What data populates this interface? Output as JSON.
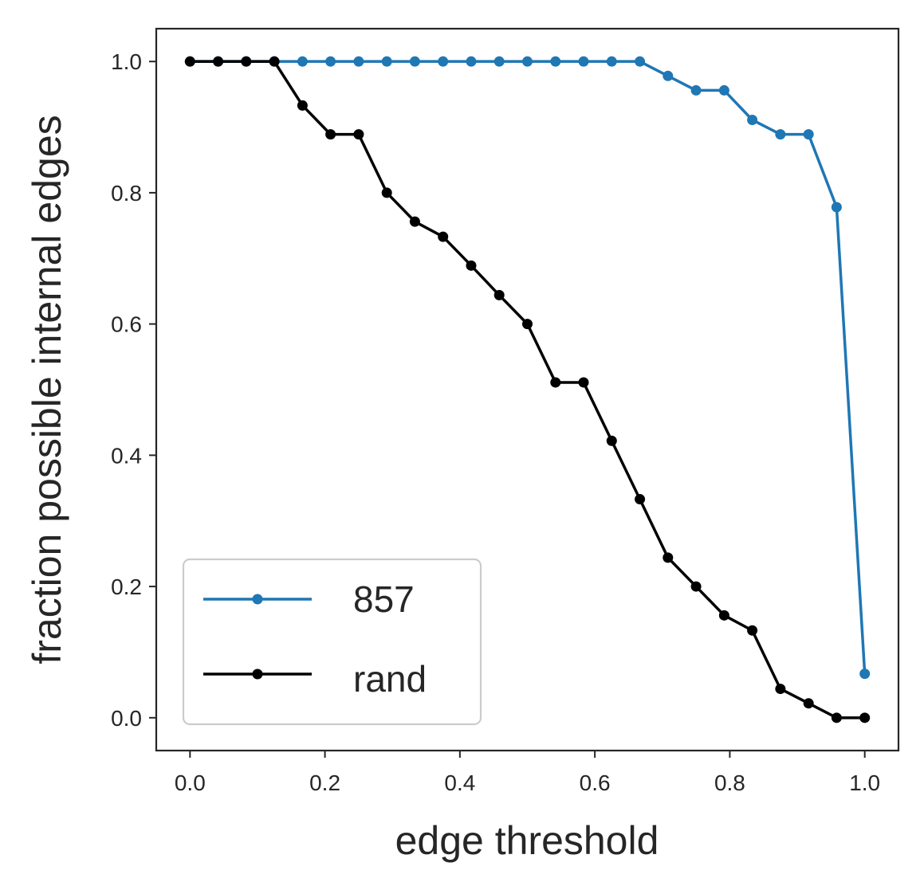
{
  "chart_data": {
    "type": "line",
    "xlabel": "edge threshold",
    "ylabel": "fraction possible internal edges",
    "xlim": [
      -0.05,
      1.05
    ],
    "ylim": [
      -0.05,
      1.05
    ],
    "xticks": [
      0.0,
      0.2,
      0.4,
      0.6,
      0.8,
      1.0
    ],
    "yticks": [
      0.0,
      0.2,
      0.4,
      0.6,
      0.8,
      1.0
    ],
    "xtick_labels": [
      "0.0",
      "0.2",
      "0.4",
      "0.6",
      "0.8",
      "1.0"
    ],
    "ytick_labels": [
      "0.0",
      "0.2",
      "0.4",
      "0.6",
      "0.8",
      "1.0"
    ],
    "grid": false,
    "legend_position": "lower-left",
    "x": [
      0.0,
      0.0417,
      0.0833,
      0.125,
      0.1667,
      0.2083,
      0.25,
      0.2917,
      0.3333,
      0.375,
      0.4167,
      0.4583,
      0.5,
      0.5417,
      0.5833,
      0.625,
      0.6667,
      0.7083,
      0.75,
      0.7917,
      0.8333,
      0.875,
      0.9167,
      0.9583,
      1.0
    ],
    "series": [
      {
        "name": "857",
        "color": "#1f77b4",
        "values": [
          1.0,
          1.0,
          1.0,
          1.0,
          1.0,
          1.0,
          1.0,
          1.0,
          1.0,
          1.0,
          1.0,
          1.0,
          1.0,
          1.0,
          1.0,
          1.0,
          1.0,
          0.978,
          0.956,
          0.956,
          0.911,
          0.889,
          0.889,
          0.778,
          0.067
        ]
      },
      {
        "name": "rand",
        "color": "#000000",
        "values": [
          1.0,
          1.0,
          1.0,
          1.0,
          0.933,
          0.889,
          0.889,
          0.8,
          0.756,
          0.733,
          0.689,
          0.644,
          0.6,
          0.511,
          0.511,
          0.422,
          0.333,
          0.244,
          0.2,
          0.156,
          0.133,
          0.044,
          0.022,
          0.0,
          0.0
        ]
      }
    ]
  }
}
